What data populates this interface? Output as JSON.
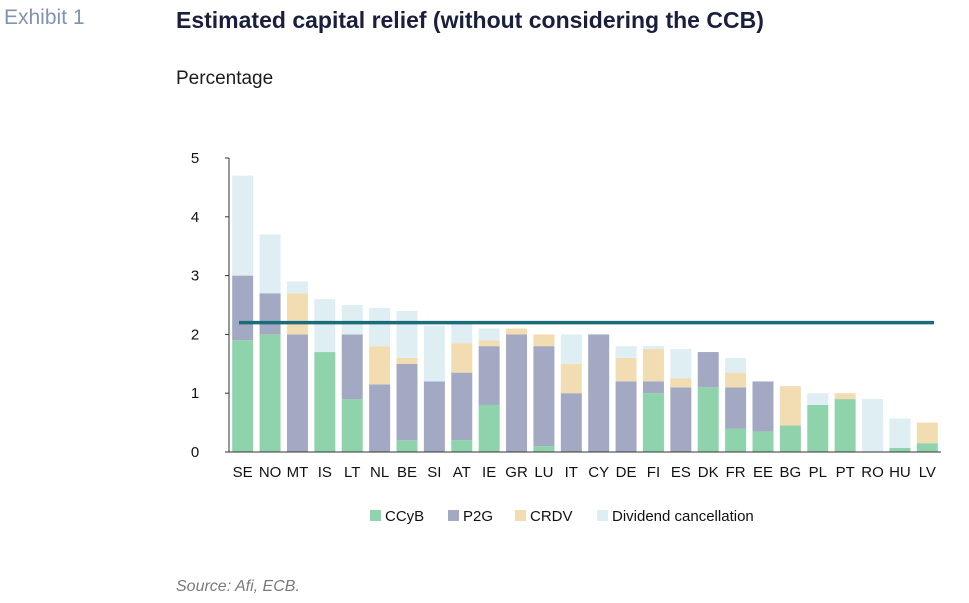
{
  "header": {
    "exhibit": "Exhibit 1",
    "title": "Estimated capital relief (without considering the CCB)",
    "unit": "Percentage"
  },
  "footer": {
    "source": "Source: Afi, ECB."
  },
  "colors": {
    "CCyB": "#8fd3ac",
    "P2G": "#a3a9c3",
    "CRDV": "#f2ddb3",
    "Dividend cancellation": "#deeef2",
    "reference_line": "#1b6b78",
    "axis": "#333333"
  },
  "chart_data": {
    "type": "bar",
    "stacked": true,
    "ylim": [
      0,
      5
    ],
    "yticks": [
      "0",
      "1",
      "2",
      "3",
      "4",
      "5"
    ],
    "categories": [
      "SE",
      "NO",
      "MT",
      "IS",
      "LT",
      "NL",
      "BE",
      "SI",
      "AT",
      "IE",
      "GR",
      "LU",
      "IT",
      "CY",
      "DE",
      "FI",
      "ES",
      "DK",
      "FR",
      "EE",
      "BG",
      "PL",
      "PT",
      "RO",
      "HU",
      "LV"
    ],
    "series": [
      {
        "name": "CCyB",
        "values": [
          1.9,
          2.0,
          0,
          1.7,
          0.9,
          0,
          0.2,
          0,
          0.2,
          0.8,
          0,
          0.1,
          0,
          0,
          0,
          1.0,
          0,
          1.1,
          0.4,
          0.35,
          0.45,
          0.8,
          0.9,
          0,
          0.07,
          0.15
        ]
      },
      {
        "name": "P2G",
        "values": [
          1.1,
          0.7,
          2.0,
          0,
          1.1,
          1.15,
          1.3,
          1.2,
          1.15,
          1.0,
          2.0,
          1.7,
          1.0,
          2.0,
          1.2,
          0.2,
          1.1,
          0.6,
          0.7,
          0.85,
          0,
          0,
          0,
          0,
          0,
          0
        ]
      },
      {
        "name": "CRDV",
        "values": [
          0,
          0,
          0.7,
          0,
          0,
          0.65,
          0.1,
          0,
          0.5,
          0.1,
          0.1,
          0.2,
          0.5,
          0,
          0.4,
          0.55,
          0.15,
          0,
          0.25,
          0,
          0.67,
          0,
          0.1,
          0,
          0,
          0.35
        ]
      },
      {
        "name": "Dividend cancellation",
        "values": [
          1.7,
          1.0,
          0.2,
          0.9,
          0.5,
          0.65,
          0.8,
          0.95,
          0.35,
          0.2,
          0,
          0,
          0.5,
          0,
          0.2,
          0.05,
          0.5,
          0,
          0.25,
          0,
          0,
          0.2,
          0,
          0.9,
          0.5,
          0
        ]
      }
    ],
    "reference_line": {
      "value": 2.2
    }
  }
}
